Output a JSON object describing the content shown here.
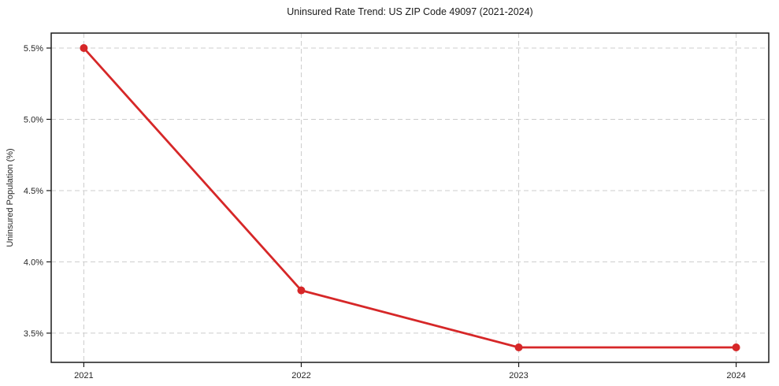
{
  "title": "Uninsured Rate Trend: US ZIP Code 49097 (2021-2024)",
  "chart_data": {
    "type": "line",
    "title": "Uninsured Rate Trend: US ZIP Code 49097 (2021-2024)",
    "x": [
      2021,
      2022,
      2023,
      2024
    ],
    "values": [
      5.5,
      3.8,
      3.4,
      3.4
    ],
    "series_name": "Uninsured rate",
    "xlabel": "",
    "ylabel": "Uninsured Population (%)",
    "xticks": [
      2021,
      2022,
      2023,
      2024
    ],
    "xtick_labels": [
      "2021",
      "2022",
      "2023",
      "2024"
    ],
    "yticks": [
      3.5,
      4.0,
      4.5,
      5.0,
      5.5
    ],
    "ytick_labels": [
      "3.5%",
      "4.0%",
      "4.5%",
      "5.0%",
      "5.5%"
    ],
    "xlim": [
      2020.85,
      2024.15
    ],
    "ylim": [
      3.295,
      5.605
    ],
    "grid": true,
    "grid_style": "dashed",
    "legend_position": "none",
    "marker": "circle"
  },
  "colors": {
    "line": "#d62728",
    "grid": "#cccccc",
    "spine": "#1a1a1a",
    "tick": "#1a1a1a",
    "text": "#262626",
    "background": "#ffffff"
  }
}
